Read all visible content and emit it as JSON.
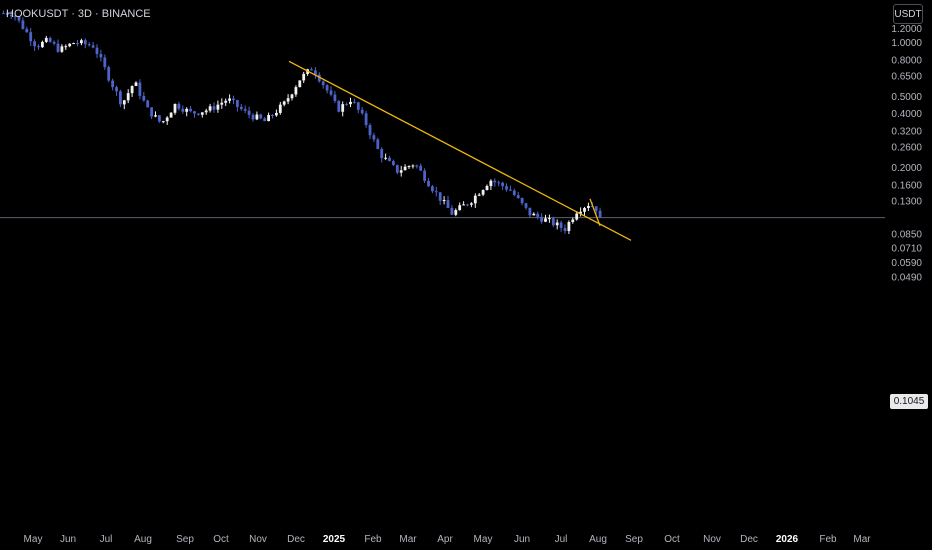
{
  "header": {
    "title": "HOOKUSDT · 3D · BINANCE"
  },
  "unit_badge": "USDT",
  "last_price_label": "0.1045",
  "colors": {
    "up": "#f2f2f2",
    "down": "#4d63c9",
    "trendline": "#f0b90b",
    "axis_text": "#b2b5be",
    "year_text": "#ffffff",
    "price_line": "#5d606b"
  },
  "chart_data": {
    "type": "candlestick",
    "title": "HOOKUSDT · 3D · BINANCE",
    "xlabel": "",
    "ylabel": "",
    "y_scale": "log",
    "ylim": [
      0.043,
      1.55
    ],
    "y_ticks": [
      "1.2000",
      "1.0000",
      "0.8000",
      "0.6500",
      "0.5000",
      "0.4000",
      "0.3200",
      "0.2600",
      "0.2000",
      "0.1600",
      "0.1300",
      "0.1045",
      "0.0850",
      "0.0710",
      "0.0590",
      "0.0490"
    ],
    "x_ticks": [
      "May",
      "Jun",
      "Jul",
      "Aug",
      "Sep",
      "Oct",
      "Nov",
      "Dec",
      "2025",
      "Feb",
      "Mar",
      "Apr",
      "May",
      "Jun",
      "Jul",
      "Aug",
      "Sep",
      "Oct",
      "Nov",
      "Dec",
      "2026",
      "Feb",
      "Mar"
    ],
    "x_ticks_year": [
      "2025",
      "2026"
    ],
    "last_price": 0.1045,
    "trendlines": [
      {
        "from": [
          "Dec 2024",
          0.78
        ],
        "to": [
          "Sep 2025",
          0.078
        ]
      },
      {
        "from": [
          "Aug 2025",
          0.133
        ],
        "to": [
          "Aug 2025",
          0.094
        ]
      }
    ],
    "price_path": [
      [
        "Apr 2024",
        1.45
      ],
      [
        "May 2024",
        0.95
      ],
      [
        "May 2024",
        1.02
      ],
      [
        "May 2024",
        0.9
      ],
      [
        "Jun 2024",
        1.0
      ],
      [
        "Jun 2024",
        0.95
      ],
      [
        "Jul 2024",
        0.62
      ],
      [
        "Jul 2024",
        0.45
      ],
      [
        "Jul 2024",
        0.6
      ],
      [
        "Aug 2024",
        0.42
      ],
      [
        "Aug 2024",
        0.35
      ],
      [
        "Aug 2024",
        0.45
      ],
      [
        "Sep 2024",
        0.4
      ],
      [
        "Sep 2024",
        0.42
      ],
      [
        "Oct 2024",
        0.48
      ],
      [
        "Oct 2024",
        0.4
      ],
      [
        "Nov 2024",
        0.36
      ],
      [
        "Nov 2024",
        0.45
      ],
      [
        "Dec 2024",
        0.62
      ],
      [
        "Dec 2024",
        0.72
      ],
      [
        "Dec 2024",
        0.56
      ],
      [
        "Jan 2025",
        0.42
      ],
      [
        "Jan 2025",
        0.48
      ],
      [
        "Jan 2025",
        0.37
      ],
      [
        "Feb 2025",
        0.24
      ],
      [
        "Feb 2025",
        0.19
      ],
      [
        "Mar 2025",
        0.21
      ],
      [
        "Mar 2025",
        0.15
      ],
      [
        "Apr 2025",
        0.11
      ],
      [
        "Apr 2025",
        0.13
      ],
      [
        "May 2025",
        0.17
      ],
      [
        "May 2025",
        0.15
      ],
      [
        "Jun 2025",
        0.11
      ],
      [
        "Jun 2025",
        0.1
      ],
      [
        "Jul 2025",
        0.09
      ],
      [
        "Jul 2025",
        0.115
      ],
      [
        "Jul 2025",
        0.125
      ],
      [
        "Aug 2025",
        0.11
      ],
      [
        "Aug 2025",
        0.1045
      ]
    ]
  }
}
